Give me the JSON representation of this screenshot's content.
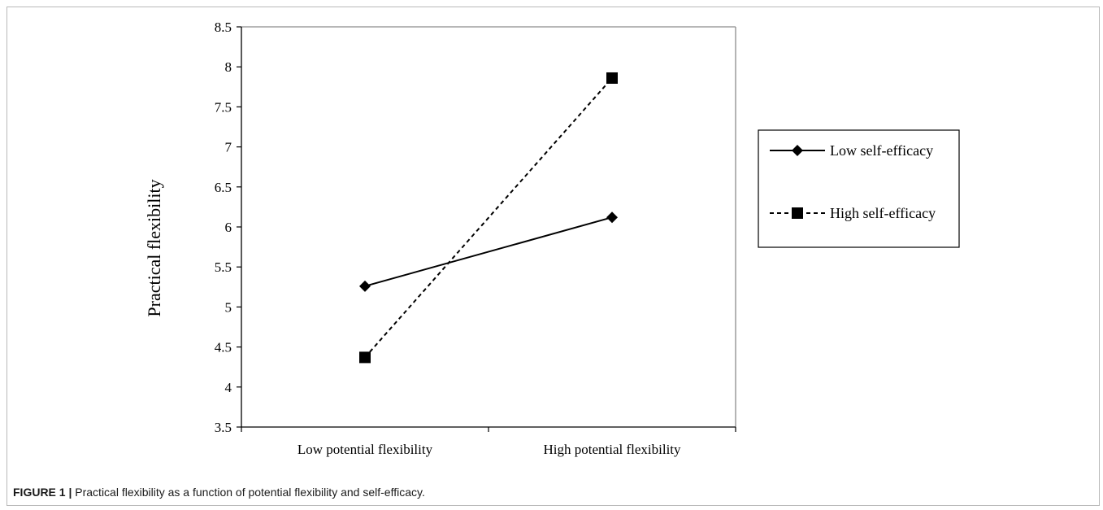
{
  "caption": {
    "label": "FIGURE 1 |",
    "text": "Practical flexibility as a function of potential flexibility and self-efficacy."
  },
  "chart_data": {
    "type": "line",
    "title": "",
    "xlabel": "",
    "ylabel": "Practical flexibility",
    "categories": [
      "Low potential flexibility",
      "High potential flexibility"
    ],
    "ylim": [
      3.5,
      8.5
    ],
    "yticks": [
      "3.5",
      "4",
      "4.5",
      "5",
      "5.5",
      "6",
      "6.5",
      "7",
      "7.5",
      "8",
      "8.5"
    ],
    "grid": false,
    "legend_position": "right",
    "series": [
      {
        "name": "Low self-efficacy",
        "values": [
          5.26,
          6.12
        ],
        "marker": "diamond",
        "line_style": "solid",
        "color": "#000000"
      },
      {
        "name": "High self-efficacy",
        "values": [
          4.37,
          7.86
        ],
        "marker": "square",
        "line_style": "dashed",
        "color": "#000000"
      }
    ]
  }
}
